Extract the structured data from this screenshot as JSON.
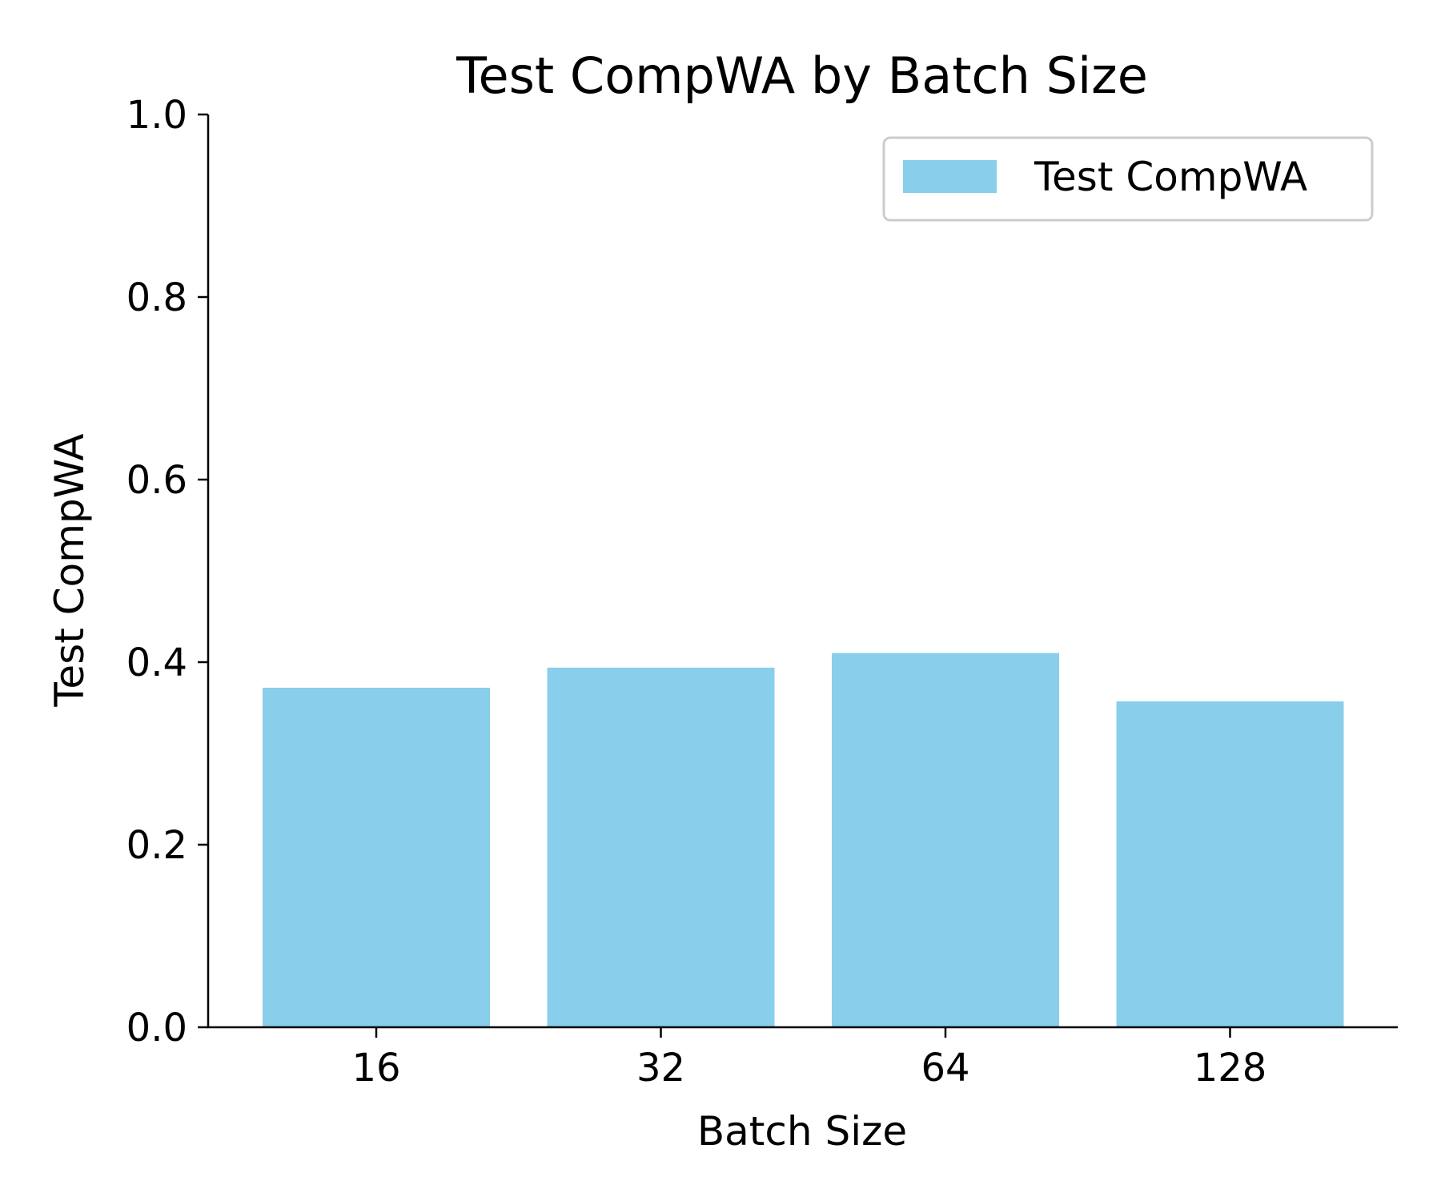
{
  "chart_data": {
    "type": "bar",
    "title": "Test CompWA by Batch Size",
    "xlabel": "Batch Size",
    "ylabel": "Test CompWA",
    "categories": [
      "16",
      "32",
      "64",
      "128"
    ],
    "series": [
      {
        "name": "Test CompWA",
        "values": [
          0.372,
          0.394,
          0.41,
          0.357
        ]
      }
    ],
    "ylim": [
      0,
      1.0
    ],
    "yticks": [
      "0.0",
      "0.2",
      "0.4",
      "0.6",
      "0.8",
      "1.0"
    ],
    "grid": false,
    "legend": "top-right",
    "colors": {
      "bar": "#89ceea",
      "axis": "#000000",
      "legend_border": "#cccccc"
    }
  }
}
